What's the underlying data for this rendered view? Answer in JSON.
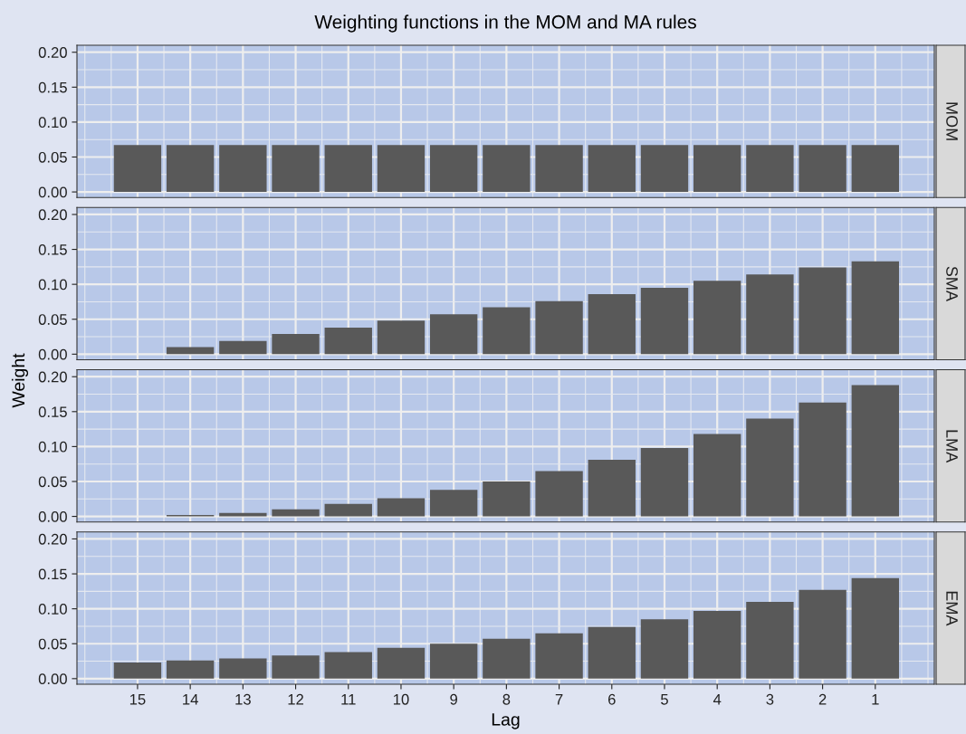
{
  "chart_data": [
    {
      "type": "bar",
      "title": "Weighting functions in the MOM and MA rules",
      "annotations": [
        "MOM"
      ],
      "x": [
        15,
        14,
        13,
        12,
        11,
        10,
        9,
        8,
        7,
        6,
        5,
        4,
        3,
        2,
        1
      ],
      "series": [
        {
          "color": "#595959",
          "values": [
            0.067,
            0.067,
            0.067,
            0.067,
            0.067,
            0.067,
            0.067,
            0.067,
            0.067,
            0.067,
            0.067,
            0.067,
            0.067,
            0.067,
            0.067
          ]
        }
      ],
      "xlim": [
        16.15,
        -0.12
      ],
      "ylim": [
        -0.008,
        0.21
      ],
      "xticks": [
        15,
        14,
        13,
        12,
        11,
        10,
        9,
        8,
        7,
        6,
        5,
        4,
        3,
        2,
        1
      ],
      "yticks": [
        {
          "value": 0,
          "label": "0.00"
        },
        {
          "value": 0.05,
          "label": "0.05"
        },
        {
          "value": 0.1,
          "label": "0.10"
        },
        {
          "value": 0.15,
          "label": "0.15"
        },
        {
          "value": 0.2,
          "label": "0.20"
        }
      ],
      "grid": true,
      "tick_labels": "y"
    },
    {
      "type": "bar",
      "annotations": [
        "SMA"
      ],
      "x": [
        15,
        14,
        13,
        12,
        11,
        10,
        9,
        8,
        7,
        6,
        5,
        4,
        3,
        2,
        1
      ],
      "series": [
        {
          "color": "#595959",
          "values": [
            0.0,
            0.01,
            0.019,
            0.029,
            0.038,
            0.048,
            0.057,
            0.067,
            0.076,
            0.086,
            0.095,
            0.105,
            0.114,
            0.124,
            0.133
          ]
        }
      ],
      "xlim": [
        16.15,
        -0.12
      ],
      "ylim": [
        -0.008,
        0.21
      ],
      "xticks": [
        15,
        14,
        13,
        12,
        11,
        10,
        9,
        8,
        7,
        6,
        5,
        4,
        3,
        2,
        1
      ],
      "yticks": [
        {
          "value": 0,
          "label": "0.00"
        },
        {
          "value": 0.05,
          "label": "0.05"
        },
        {
          "value": 0.1,
          "label": "0.10"
        },
        {
          "value": 0.15,
          "label": "0.15"
        },
        {
          "value": 0.2,
          "label": "0.20"
        }
      ],
      "grid": true,
      "tick_labels": "y"
    },
    {
      "type": "bar",
      "ylabel": "Weight",
      "annotations": [
        "LMA"
      ],
      "x": [
        15,
        14,
        13,
        12,
        11,
        10,
        9,
        8,
        7,
        6,
        5,
        4,
        3,
        2,
        1
      ],
      "series": [
        {
          "color": "#595959",
          "values": [
            0.0,
            0.002,
            0.005,
            0.01,
            0.018,
            0.026,
            0.038,
            0.05,
            0.065,
            0.081,
            0.098,
            0.118,
            0.14,
            0.163,
            0.188
          ]
        }
      ],
      "xlim": [
        16.15,
        -0.12
      ],
      "ylim": [
        -0.008,
        0.21
      ],
      "xticks": [
        15,
        14,
        13,
        12,
        11,
        10,
        9,
        8,
        7,
        6,
        5,
        4,
        3,
        2,
        1
      ],
      "yticks": [
        {
          "value": 0,
          "label": "0.00"
        },
        {
          "value": 0.05,
          "label": "0.05"
        },
        {
          "value": 0.1,
          "label": "0.10"
        },
        {
          "value": 0.15,
          "label": "0.15"
        },
        {
          "value": 0.2,
          "label": "0.20"
        }
      ],
      "grid": true,
      "tick_labels": "y"
    },
    {
      "type": "bar",
      "xlabel": "Lag",
      "annotations": [
        "EMA"
      ],
      "x": [
        15,
        14,
        13,
        12,
        11,
        10,
        9,
        8,
        7,
        6,
        5,
        4,
        3,
        2,
        1
      ],
      "series": [
        {
          "color": "#595959",
          "values": [
            0.023,
            0.026,
            0.029,
            0.033,
            0.038,
            0.044,
            0.05,
            0.057,
            0.065,
            0.074,
            0.085,
            0.097,
            0.11,
            0.127,
            0.144
          ]
        }
      ],
      "xlim": [
        16.15,
        -0.12
      ],
      "ylim": [
        -0.008,
        0.21
      ],
      "xticks": [
        15,
        14,
        13,
        12,
        11,
        10,
        9,
        8,
        7,
        6,
        5,
        4,
        3,
        2,
        1
      ],
      "yticks": [
        {
          "value": 0,
          "label": "0.00"
        },
        {
          "value": 0.05,
          "label": "0.05"
        },
        {
          "value": 0.1,
          "label": "0.10"
        },
        {
          "value": 0.15,
          "label": "0.15"
        },
        {
          "value": 0.2,
          "label": "0.20"
        }
      ],
      "grid": true
    }
  ]
}
